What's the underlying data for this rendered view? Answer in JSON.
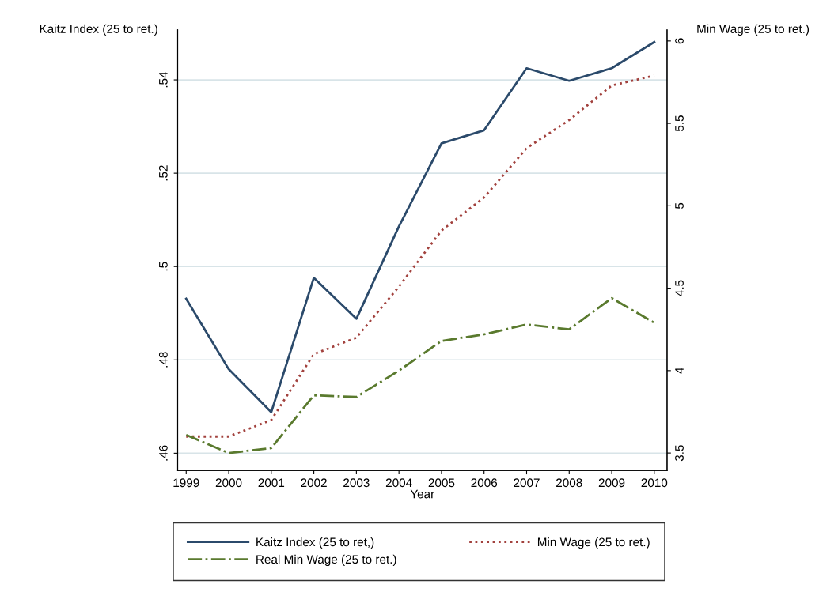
{
  "chart_data": {
    "type": "line",
    "xlabel": "Year",
    "ylabel": "Kaitz Index (25 to ret.)",
    "y2label": "Min Wage (25 to ret.)",
    "x": [
      1999,
      2000,
      2001,
      2002,
      2003,
      2004,
      2005,
      2006,
      2007,
      2008,
      2009,
      2010
    ],
    "xlim": [
      1998.8,
      2010.3
    ],
    "xticks": [
      1999,
      2000,
      2001,
      2002,
      2003,
      2004,
      2005,
      2006,
      2007,
      2008,
      2009,
      2010
    ],
    "ylim": [
      0.4563,
      0.5507
    ],
    "yticks": [
      {
        "value": 0.46,
        "label": ".46"
      },
      {
        "value": 0.48,
        "label": ".48"
      },
      {
        "value": 0.5,
        "label": ".5"
      },
      {
        "value": 0.52,
        "label": ".52"
      },
      {
        "value": 0.54,
        "label": ".54"
      }
    ],
    "y2lim": [
      3.394,
      6.067
    ],
    "y2ticks": [
      3.5,
      4,
      4.5,
      5,
      5.5,
      6
    ],
    "grid": "y",
    "legend": "bottom",
    "marker": "none",
    "series": [
      {
        "name": "Kaitz Index (25 to ret,)",
        "color": "#2b4a6b",
        "line_style": "solid",
        "values": [
          0.4931,
          0.478,
          0.4688,
          0.4976,
          0.4888,
          0.5086,
          0.5264,
          0.5292,
          0.5425,
          0.5398,
          0.5425,
          0.5481
        ]
      },
      {
        "name": "Min Wage (25 to ret.)",
        "color": "#a2413d",
        "line_style": "dotted",
        "axis": "y2",
        "values": [
          3.6,
          3.6,
          3.7,
          4.1,
          4.2,
          4.51,
          4.85,
          5.05,
          5.35,
          5.52,
          5.73,
          5.79
        ]
      },
      {
        "name": "Real Min Wage (25 to ret.)",
        "color": "#5a7a2e",
        "line_style": "dashdot",
        "axis": "y2",
        "values": [
          3.61,
          3.5,
          3.53,
          3.85,
          3.84,
          4.0,
          4.18,
          4.22,
          4.28,
          4.25,
          4.44,
          4.29
        ]
      }
    ]
  }
}
